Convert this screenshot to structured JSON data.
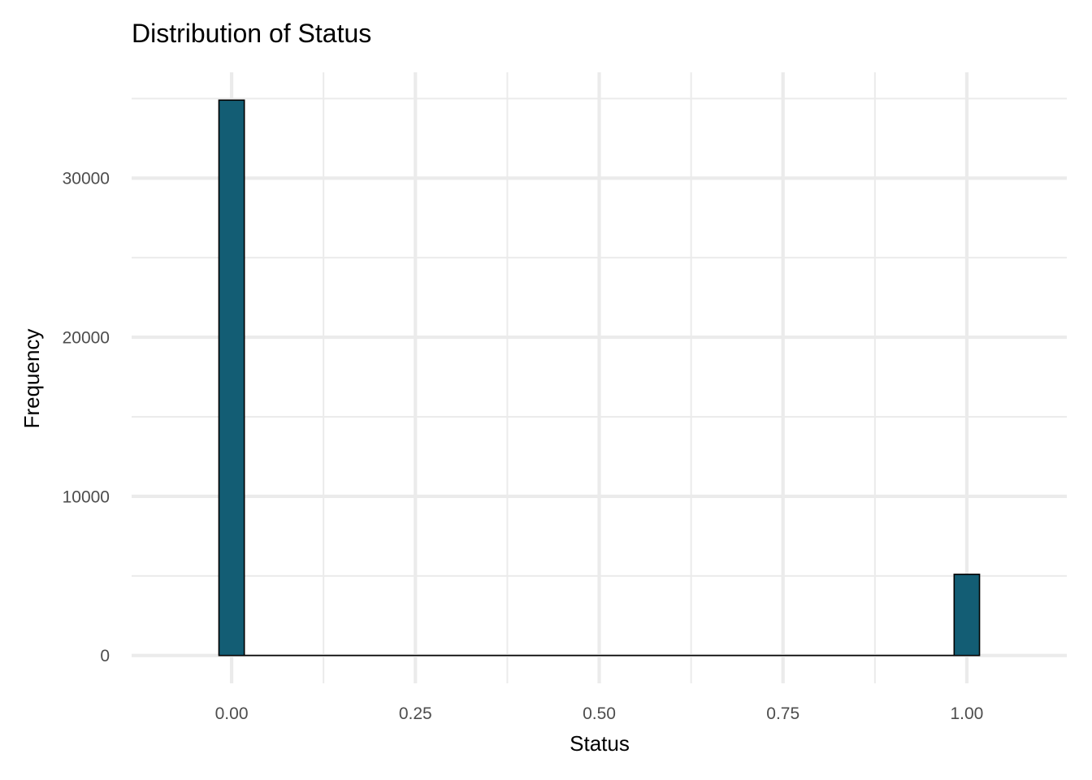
{
  "chart_data": {
    "type": "bar",
    "subtype": "histogram",
    "title": "Distribution of Status",
    "xlabel": "Status",
    "ylabel": "Frequency",
    "x": [
      0.0,
      1.0
    ],
    "values": [
      34900,
      5100
    ],
    "bin_width": 0.0345,
    "xlim": [
      -0.136,
      1.136
    ],
    "ylim": [
      -1750,
      36650
    ],
    "x_ticks": [
      0.0,
      0.25,
      0.5,
      0.75,
      1.0
    ],
    "x_tick_labels": [
      "0.00",
      "0.25",
      "0.50",
      "0.75",
      "1.00"
    ],
    "y_ticks": [
      0,
      10000,
      20000,
      30000
    ],
    "y_tick_labels": [
      "0",
      "10000",
      "20000",
      "30000"
    ],
    "grid": true,
    "legend": "none",
    "colors": {
      "bar_fill": "#135d74",
      "bar_outline": "#000000",
      "grid": "#ebebeb",
      "background": "#ffffff"
    }
  }
}
